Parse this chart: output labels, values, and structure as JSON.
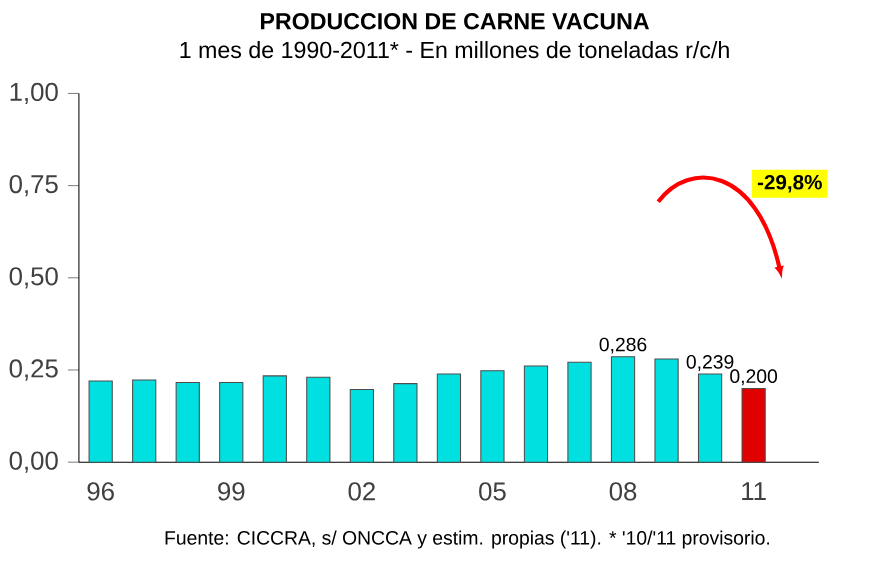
{
  "chart_data": {
    "type": "bar",
    "title": "PRODUCCION DE CARNE VACUNA",
    "subtitle": "1 mes de 1990-2011* - En millones de toneladas r/c/h",
    "categories": [
      "96",
      null,
      null,
      "99",
      null,
      null,
      "02",
      null,
      null,
      "05",
      null,
      null,
      "08",
      null,
      null,
      "11"
    ],
    "values": [
      0.22,
      0.223,
      0.216,
      0.216,
      0.234,
      0.23,
      0.197,
      0.213,
      0.239,
      0.248,
      0.261,
      0.271,
      0.286,
      0.28,
      0.239,
      0.2
    ],
    "colors": [
      "#00e0e0",
      "#00e0e0",
      "#00e0e0",
      "#00e0e0",
      "#00e0e0",
      "#00e0e0",
      "#00e0e0",
      "#00e0e0",
      "#00e0e0",
      "#00e0e0",
      "#00e0e0",
      "#00e0e0",
      "#00e0e0",
      "#00e0e0",
      "#00e0e0",
      "#e00000"
    ],
    "value_labels": [
      null,
      null,
      null,
      null,
      null,
      null,
      null,
      null,
      null,
      null,
      null,
      null,
      "0,286",
      null,
      "0,239",
      "0,200"
    ],
    "ylim": [
      0,
      1
    ],
    "yticks": [
      {
        "value": 0,
        "label": "0,00"
      },
      {
        "value": 0.25,
        "label": "0,25"
      },
      {
        "value": 0.5,
        "label": "0,50"
      },
      {
        "value": 0.75,
        "label": "0,75"
      },
      {
        "value": 1,
        "label": "1,00"
      }
    ],
    "annotations": [
      "-29,8%",
      "Fuente: CICCRA, s/ ONCCA y estim. propias ('11). * '10/'11 provisorio."
    ]
  }
}
